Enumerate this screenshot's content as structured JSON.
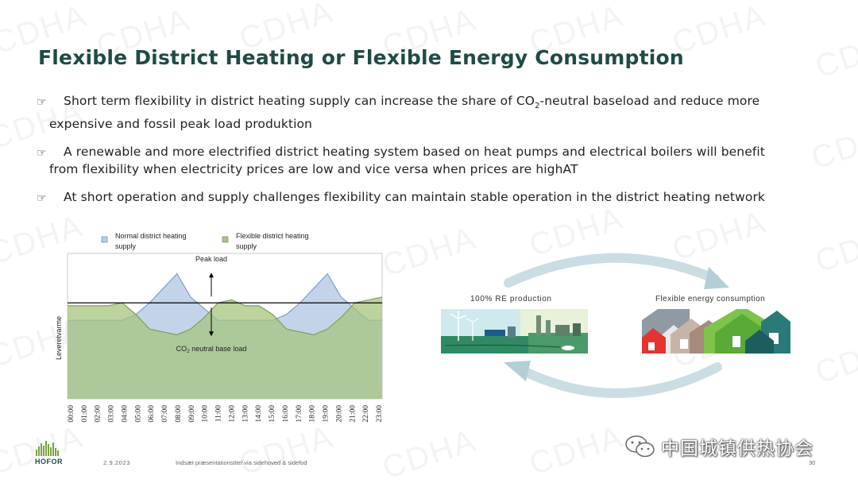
{
  "slide": {
    "title": "Flexible District Heating or Flexible Energy Consumption",
    "watermark": "CDHA",
    "bullets": [
      {
        "line1": "Short term flexibility in district heating supply can increase the share of CO",
        "sub": "2",
        "line1_tail": "-neutral baseload and reduce more",
        "line2": "expensive and fossil peak load produktion"
      },
      {
        "line1": "A renewable and more electrified district heating system based on heat pumps and electrical boilers will benefit",
        "line2": "from flexibility when electricity prices are low and vice versa when prices are highAT"
      },
      {
        "line1": "At short operation and supply challenges flexibility can maintain stable operation in the district heating network"
      }
    ],
    "bullet_icon": "pointing-hand-icon"
  },
  "chart_data": {
    "type": "area",
    "legend": [
      {
        "name_line1": "Normal district heating",
        "name_line2": "supply",
        "color": "#b8cde6"
      },
      {
        "name_line1": "Flexible district heating",
        "name_line2": "supply",
        "color": "#a6c47e"
      }
    ],
    "ylabel": "Leveretvarme",
    "categories": [
      "00:00",
      "01:00",
      "02:00",
      "03:00",
      "04:00",
      "05:00",
      "06:00",
      "07:00",
      "08:00",
      "09:00",
      "10:00",
      "11:00",
      "12:00",
      "13:00",
      "14:00",
      "15:00",
      "16:00",
      "17:00",
      "18:00",
      "19:00",
      "20:00",
      "21:00",
      "22:00",
      "23:00"
    ],
    "series": [
      {
        "name": "Normal district heating supply",
        "values": [
          54,
          54,
          54,
          54,
          54,
          58,
          66,
          76,
          86,
          70,
          62,
          54,
          54,
          54,
          54,
          54,
          58,
          66,
          76,
          86,
          70,
          62,
          54,
          54
        ]
      },
      {
        "name": "Flexible district heating supply",
        "values": [
          64,
          64,
          64,
          64,
          66,
          58,
          48,
          46,
          44,
          48,
          56,
          66,
          68,
          64,
          64,
          58,
          48,
          46,
          44,
          48,
          56,
          66,
          68,
          70
        ]
      }
    ],
    "baseline": 66,
    "annotations": {
      "peak_label": "Peak load",
      "base_label_pre": "CO",
      "base_label_sub": "2",
      "base_label_post": " neutral base load"
    },
    "ylim": [
      0,
      100
    ]
  },
  "diagram": {
    "left_label": "100% RE production",
    "right_label": "Flexible energy consumption"
  },
  "footer": {
    "logo": "HOFOR",
    "date": "2.9.2023",
    "text": "Indsæt præsentationstitel via sidehoved & sidefod",
    "page": "30",
    "wechat": "中国城镇供热协会"
  }
}
